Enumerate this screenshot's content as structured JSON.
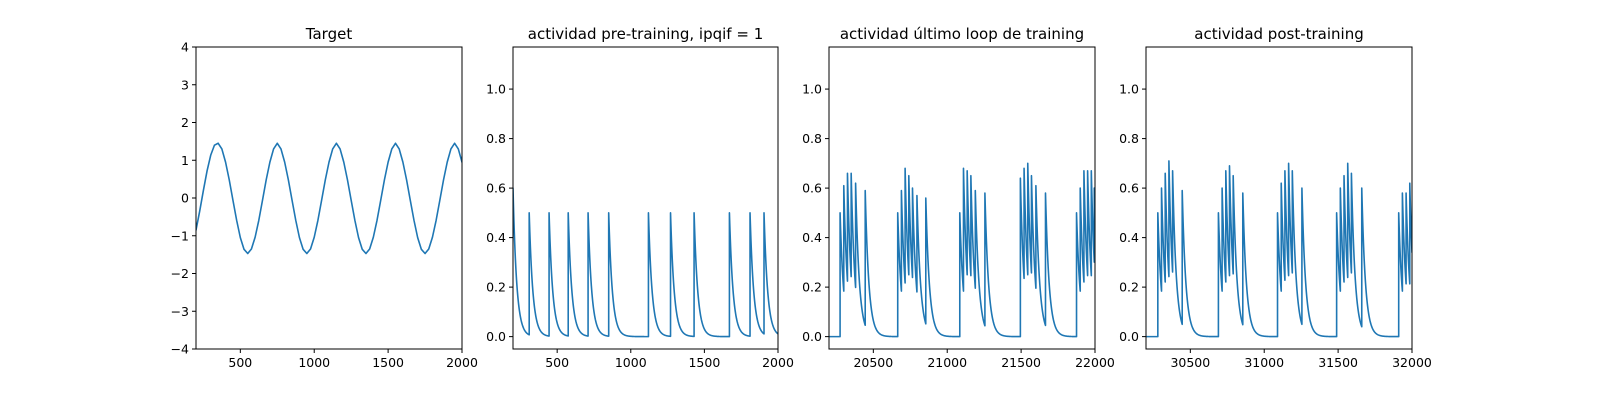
{
  "colors": {
    "series": "#1f77b4"
  },
  "chart_data": [
    {
      "type": "line",
      "title": "Target",
      "xlim": [
        200,
        2000
      ],
      "ylim": [
        -4,
        4
      ],
      "xticks": [
        "500",
        "1000",
        "1500",
        "2000"
      ],
      "yticks": [
        "−4",
        "−3",
        "−2",
        "−1",
        "0",
        "1",
        "2",
        "3",
        "4"
      ],
      "x": [
        200,
        225,
        250,
        275,
        300,
        325,
        350,
        375,
        400,
        425,
        450,
        475,
        500,
        525,
        550,
        575,
        600,
        625,
        650,
        675,
        700,
        725,
        750,
        775,
        800,
        825,
        850,
        875,
        900,
        925,
        950,
        975,
        1000,
        1025,
        1050,
        1075,
        1100,
        1125,
        1150,
        1175,
        1200,
        1225,
        1250,
        1275,
        1300,
        1325,
        1350,
        1375,
        1400,
        1425,
        1450,
        1475,
        1500,
        1525,
        1550,
        1575,
        1600,
        1625,
        1650,
        1675,
        1700,
        1725,
        1750,
        1775,
        1800,
        1825,
        1850,
        1875,
        1900,
        1925,
        1950,
        1975,
        2000
      ],
      "y": [
        -0.85,
        -0.35,
        0.2,
        0.72,
        1.14,
        1.4,
        1.45,
        1.3,
        0.95,
        0.48,
        -0.06,
        -0.59,
        -1.05,
        -1.36,
        -1.47,
        -1.35,
        -1.04,
        -0.59,
        -0.06,
        0.48,
        0.95,
        1.3,
        1.45,
        1.3,
        0.95,
        0.48,
        -0.06,
        -0.59,
        -1.05,
        -1.36,
        -1.47,
        -1.35,
        -1.04,
        -0.59,
        -0.06,
        0.48,
        0.95,
        1.3,
        1.45,
        1.3,
        0.95,
        0.48,
        -0.06,
        -0.59,
        -1.05,
        -1.36,
        -1.47,
        -1.35,
        -1.04,
        -0.59,
        -0.06,
        0.48,
        0.95,
        1.3,
        1.45,
        1.3,
        0.95,
        0.48,
        -0.06,
        -0.59,
        -1.05,
        -1.36,
        -1.47,
        -1.35,
        -1.04,
        -0.59,
        -0.06,
        0.48,
        0.95,
        1.3,
        1.45,
        1.3,
        0.95
      ]
    },
    {
      "type": "line",
      "title": "actividad pre-training, ipqif = 1",
      "xlim": [
        200,
        2000
      ],
      "ylim": [
        -0.05,
        1.17
      ],
      "xticks": [
        "500",
        "1000",
        "1500",
        "2000"
      ],
      "yticks": [
        "0.0",
        "0.2",
        "0.4",
        "0.6",
        "0.8",
        "1.0"
      ],
      "baseline": 0,
      "decay_tau": 25,
      "initial_peak": 0.6,
      "spikes": [
        [
          310,
          0.5
        ],
        [
          445,
          0.5
        ],
        [
          575,
          0.5
        ],
        [
          710,
          0.5
        ],
        [
          850,
          0.5
        ],
        [
          1120,
          0.5
        ],
        [
          1270,
          0.5
        ],
        [
          1430,
          0.5
        ],
        [
          1670,
          0.5
        ],
        [
          1810,
          0.5
        ],
        [
          1905,
          0.5
        ]
      ]
    },
    {
      "type": "line",
      "title": "actividad último loop de training",
      "xlim": [
        20200,
        22000
      ],
      "ylim": [
        -0.05,
        1.17
      ],
      "xticks": [
        "20500",
        "21000",
        "21500",
        "22000"
      ],
      "yticks": [
        "0.0",
        "0.2",
        "0.4",
        "0.6",
        "0.8",
        "1.0"
      ],
      "baseline": 0,
      "decay_tau": 25,
      "spikes": [
        [
          20275,
          0.5
        ],
        [
          20300,
          0.61
        ],
        [
          20325,
          0.66
        ],
        [
          20350,
          0.66
        ],
        [
          20380,
          0.62
        ],
        [
          20445,
          0.59
        ],
        [
          20665,
          0.5
        ],
        [
          20690,
          0.59
        ],
        [
          20715,
          0.68
        ],
        [
          20740,
          0.65
        ],
        [
          20765,
          0.6
        ],
        [
          20795,
          0.57
        ],
        [
          20855,
          0.56
        ],
        [
          21085,
          0.5
        ],
        [
          21110,
          0.68
        ],
        [
          21135,
          0.67
        ],
        [
          21160,
          0.65
        ],
        [
          21190,
          0.59
        ],
        [
          21255,
          0.58
        ],
        [
          21495,
          0.64
        ],
        [
          21520,
          0.68
        ],
        [
          21545,
          0.7
        ],
        [
          21570,
          0.65
        ],
        [
          21600,
          0.61
        ],
        [
          21665,
          0.58
        ],
        [
          21875,
          0.5
        ],
        [
          21900,
          0.6
        ],
        [
          21925,
          0.67
        ],
        [
          21950,
          0.67
        ],
        [
          21975,
          0.67
        ],
        [
          21995,
          0.6
        ]
      ]
    },
    {
      "type": "line",
      "title": "actividad post-training",
      "xlim": [
        30200,
        32000
      ],
      "ylim": [
        -0.05,
        1.17
      ],
      "xticks": [
        "30500",
        "31000",
        "31500",
        "32000"
      ],
      "yticks": [
        "0.0",
        "0.2",
        "0.4",
        "0.6",
        "0.8",
        "1.0"
      ],
      "baseline": 0,
      "decay_tau": 25,
      "spikes": [
        [
          30280,
          0.5
        ],
        [
          30305,
          0.6
        ],
        [
          30330,
          0.66
        ],
        [
          30355,
          0.71
        ],
        [
          30380,
          0.67
        ],
        [
          30445,
          0.59
        ],
        [
          30690,
          0.5
        ],
        [
          30715,
          0.6
        ],
        [
          30740,
          0.67
        ],
        [
          30765,
          0.69
        ],
        [
          30790,
          0.65
        ],
        [
          30855,
          0.58
        ],
        [
          31090,
          0.5
        ],
        [
          31115,
          0.62
        ],
        [
          31140,
          0.67
        ],
        [
          31165,
          0.7
        ],
        [
          31190,
          0.67
        ],
        [
          31255,
          0.6
        ],
        [
          31490,
          0.5
        ],
        [
          31515,
          0.6
        ],
        [
          31540,
          0.65
        ],
        [
          31565,
          0.7
        ],
        [
          31590,
          0.66
        ],
        [
          31660,
          0.6
        ],
        [
          31910,
          0.5
        ],
        [
          31935,
          0.58
        ],
        [
          31960,
          0.58
        ],
        [
          31985,
          0.62
        ]
      ]
    }
  ]
}
